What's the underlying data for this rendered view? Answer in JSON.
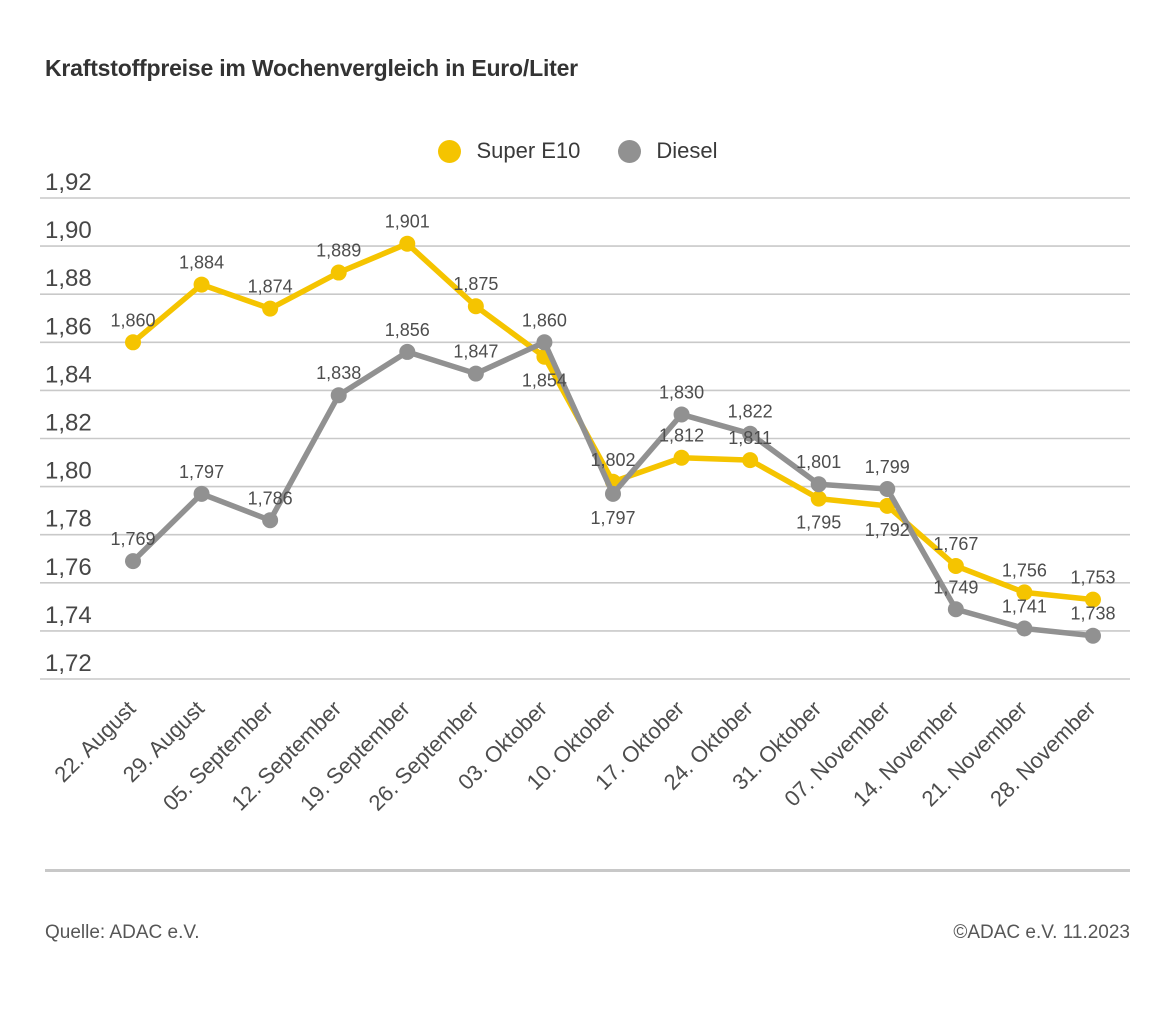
{
  "page": {
    "title": "Kraftstoffpreise im Wochenvergleich in Euro/Liter",
    "footer": {
      "source": "Quelle: ADAC e.V.",
      "copyright": "©ADAC e.V. 11.2023"
    }
  },
  "colors": {
    "super_e10": "#F5C400",
    "diesel": "#919191",
    "gridline": "#C9C9C9",
    "axis_text": "#474747",
    "point_label_text": "#4d4d4d",
    "title_text": "#333333"
  },
  "chart_data": {
    "type": "line",
    "title": "Kraftstoffpreise im Wochenvergleich in Euro/Liter",
    "unit": "Euro/Liter",
    "categories": [
      "22. August",
      "29. August",
      "05. September",
      "12. September",
      "19. September",
      "26. September",
      "03. Oktober",
      "10. Oktober",
      "17. Oktober",
      "24. Oktober",
      "31. Oktober",
      "07. November",
      "14. November",
      "21. November",
      "28. November"
    ],
    "series": [
      {
        "name": "Super E10",
        "color": "#F5C400",
        "values": [
          1.86,
          1.884,
          1.874,
          1.889,
          1.901,
          1.875,
          1.854,
          1.802,
          1.812,
          1.811,
          1.795,
          1.792,
          1.767,
          1.756,
          1.753
        ],
        "labels": [
          "1,860",
          "1,884",
          "1,874",
          "1,889",
          "1,901",
          "1,875",
          "1,854",
          "1,802",
          "1,812",
          "1,811",
          "1,795",
          "1,792",
          "1,767",
          "1,756",
          "1,753"
        ],
        "label_positions": [
          "above",
          "above",
          "above",
          "above",
          "above",
          "above",
          "below",
          "above",
          "above",
          "above",
          "below",
          "below",
          "above",
          "above",
          "above"
        ]
      },
      {
        "name": "Diesel",
        "color": "#919191",
        "values": [
          1.769,
          1.797,
          1.786,
          1.838,
          1.856,
          1.847,
          1.86,
          1.797,
          1.83,
          1.822,
          1.801,
          1.799,
          1.749,
          1.741,
          1.738
        ],
        "labels": [
          "1,769",
          "1,797",
          "1,786",
          "1,838",
          "1,856",
          "1,847",
          "1,860",
          "1,797",
          "1,830",
          "1,822",
          "1,801",
          "1,799",
          "1,749",
          "1,741",
          "1,738"
        ],
        "label_positions": [
          "above",
          "above",
          "above",
          "above",
          "above",
          "above",
          "above",
          "below",
          "above",
          "above",
          "above",
          "above",
          "above",
          "above",
          "above"
        ]
      }
    ],
    "yticks": {
      "values": [
        1.92,
        1.9,
        1.88,
        1.86,
        1.84,
        1.82,
        1.8,
        1.78,
        1.76,
        1.74,
        1.72
      ],
      "labels": [
        "1,92",
        "1,90",
        "1,88",
        "1,86",
        "1,84",
        "1,82",
        "1,80",
        "1,78",
        "1,76",
        "1,74",
        "1,72"
      ]
    },
    "ylim": [
      1.72,
      1.92
    ],
    "grid": true,
    "legend_position": "top-center",
    "x_label_rotation": -45,
    "draw_order_note": "Diesel drawn on top of Super E10"
  }
}
